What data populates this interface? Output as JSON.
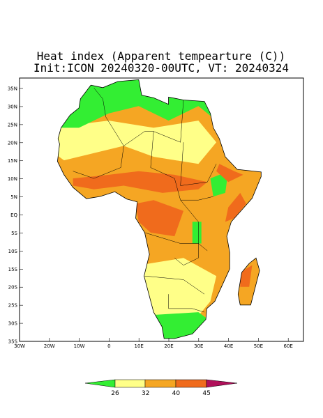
{
  "header": {
    "title": "Heat index (Apparent tempearture (C))",
    "subtitle": "Init:ICON 20240320-00UTC, VT: 20240324"
  },
  "map": {
    "lat_labels": [
      "35N",
      "30N",
      "25N",
      "20N",
      "15N",
      "10N",
      "5N",
      "EQ",
      "5S",
      "10S",
      "15S",
      "20S",
      "25S",
      "30S",
      "35S"
    ],
    "lon_labels": [
      "30W",
      "20W",
      "10W",
      "0",
      "10E",
      "20E",
      "30E",
      "40E",
      "50E",
      "60E"
    ]
  },
  "colorbar": {
    "labels": [
      "26",
      "32",
      "40",
      "45"
    ]
  }
}
